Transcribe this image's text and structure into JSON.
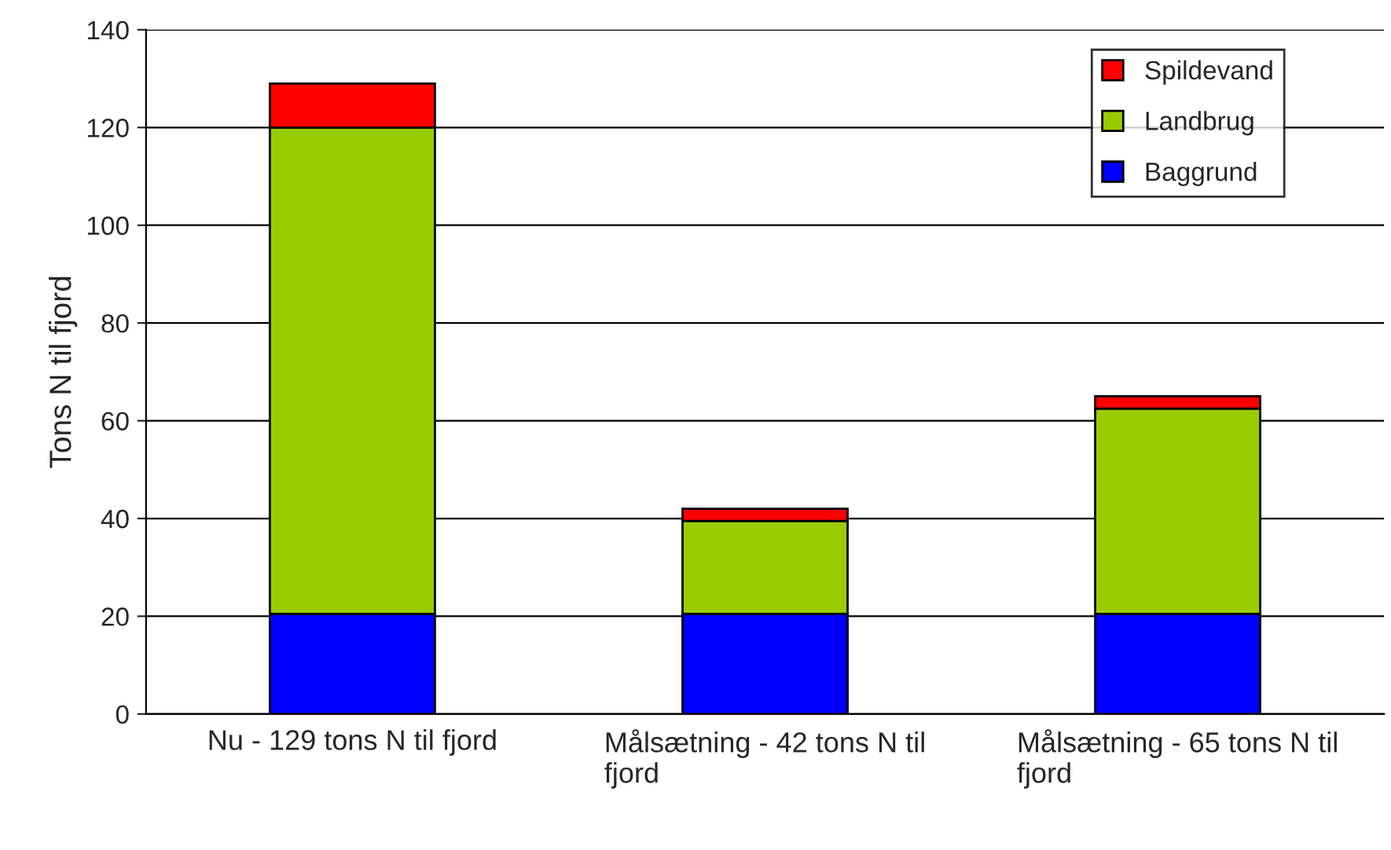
{
  "chart_data": {
    "type": "bar",
    "stacked": true,
    "ylabel": "Tons N til fjord",
    "categories": [
      "Nu - 129 tons N til fjord",
      "Målsætning - 42 tons N til fjord",
      "Målsætning - 65 tons N til fjord"
    ],
    "series": [
      {
        "name": "Baggrund",
        "color": "#0000ff",
        "values": [
          20.5,
          20.5,
          20.5
        ]
      },
      {
        "name": "Landbrug",
        "color": "#99cc00",
        "values": [
          99.5,
          19,
          42
        ]
      },
      {
        "name": "Spildevand",
        "color": "#ff0000",
        "values": [
          9,
          2.5,
          2.5
        ]
      }
    ],
    "ylim": [
      0,
      140
    ],
    "yticks": [
      0,
      20,
      40,
      60,
      80,
      100,
      120,
      140
    ],
    "grid": "y",
    "legend": "top right"
  }
}
